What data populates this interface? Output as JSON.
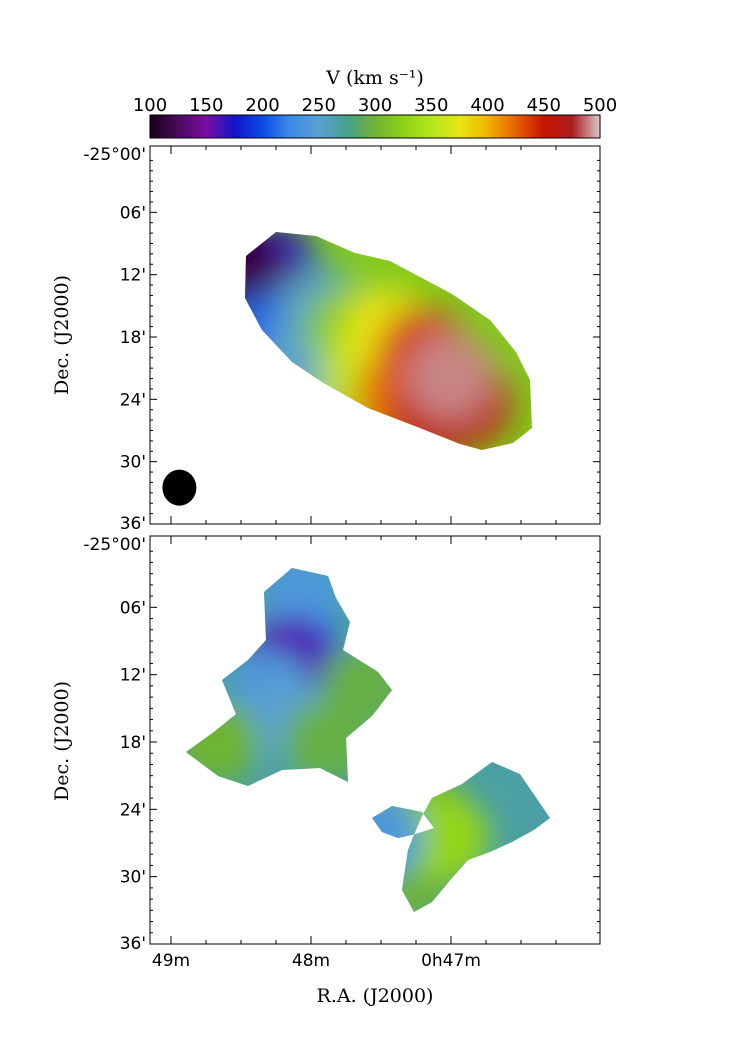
{
  "chart_data": {
    "type": "heatmap",
    "colorbar": {
      "label": "V (km s⁻¹)",
      "range": [
        100,
        500
      ],
      "ticks": [
        100,
        150,
        200,
        250,
        300,
        350,
        400,
        450,
        500
      ],
      "tick_labels": [
        "100",
        "150",
        "200",
        "250",
        "300",
        "350",
        "400",
        "450",
        "500"
      ],
      "colormap": [
        "#1a001a",
        "#4a0a5a",
        "#7a10a0",
        "#1414c8",
        "#0a4ae6",
        "#3c8ce6",
        "#5aa0d2",
        "#46a08c",
        "#6eb432",
        "#8cd214",
        "#b4e61e",
        "#e6e614",
        "#f0b400",
        "#e66400",
        "#c81400",
        "#aa1e1e",
        "#dcc8c8"
      ]
    },
    "x_axis": {
      "label": "R.A. (J2000)",
      "ticks": [
        {
          "ra_min": 49,
          "label": "49m"
        },
        {
          "ra_min": 48,
          "label": "48m"
        },
        {
          "ra_min": 47,
          "label": "0h47m"
        }
      ]
    },
    "panels": [
      {
        "name": "top",
        "ylabel": "Dec. (J2000)",
        "ylim_arcmin": [
          -36,
          0
        ],
        "yticks": [
          {
            "dec_arcmin": 0,
            "label": "-25°00'"
          },
          {
            "dec_arcmin": -6,
            "label": "06'"
          },
          {
            "dec_arcmin": -12,
            "label": "12'"
          },
          {
            "dec_arcmin": -18,
            "label": "18'"
          },
          {
            "dec_arcmin": -24,
            "label": "24'"
          },
          {
            "dec_arcmin": -30,
            "label": "30'"
          },
          {
            "dec_arcmin": -36,
            "label": "36'"
          }
        ],
        "beam": {
          "ra_min": 48.94,
          "dec_arcmin": -32.5
        },
        "blobs": [
          {
            "ra_min": 48.26,
            "dec_arcmin": -11.5,
            "velocity": 175
          },
          {
            "ra_min": 48.4,
            "dec_arcmin": -13.0,
            "velocity": 130
          },
          {
            "ra_min": 48.56,
            "dec_arcmin": -10.7,
            "velocity": 115
          },
          {
            "ra_min": 48.27,
            "dec_arcmin": -17.8,
            "velocity": 210
          },
          {
            "ra_min": 48.05,
            "dec_arcmin": -20.2,
            "velocity": 250
          },
          {
            "ra_min": 47.93,
            "dec_arcmin": -15.5,
            "velocity": 255
          },
          {
            "ra_min": 47.72,
            "dec_arcmin": -17.3,
            "velocity": 320
          },
          {
            "ra_min": 47.62,
            "dec_arcmin": -22.0,
            "velocity": 355
          },
          {
            "ra_min": 47.45,
            "dec_arcmin": -17.6,
            "velocity": 375
          },
          {
            "ra_min": 47.37,
            "dec_arcmin": -23.8,
            "velocity": 420
          },
          {
            "ra_min": 47.2,
            "dec_arcmin": -19.5,
            "velocity": 440
          },
          {
            "ra_min": 47.13,
            "dec_arcmin": -25.5,
            "velocity": 455
          },
          {
            "ra_min": 46.89,
            "dec_arcmin": -24.3,
            "velocity": 460
          },
          {
            "ra_min": 47.01,
            "dec_arcmin": -21.8,
            "velocity": 490
          }
        ]
      },
      {
        "name": "bottom",
        "ylabel": "Dec. (J2000)",
        "ylim_arcmin": [
          -36,
          0
        ],
        "yticks": [
          {
            "dec_arcmin": 0,
            "label": "-25°00'"
          },
          {
            "dec_arcmin": -6,
            "label": "06'"
          },
          {
            "dec_arcmin": -12,
            "label": "12'"
          },
          {
            "dec_arcmin": -18,
            "label": "18'"
          },
          {
            "dec_arcmin": -24,
            "label": "24'"
          },
          {
            "dec_arcmin": -30,
            "label": "30'"
          },
          {
            "dec_arcmin": -36,
            "label": "36'"
          }
        ],
        "blobs": [
          {
            "ra_min": 48.07,
            "dec_arcmin": -5.0,
            "velocity": 240
          },
          {
            "ra_min": 48.08,
            "dec_arcmin": -10.5,
            "velocity": 205
          },
          {
            "ra_min": 48.17,
            "dec_arcmin": -10.6,
            "velocity": 160
          },
          {
            "ra_min": 48.3,
            "dec_arcmin": -13.5,
            "velocity": 240
          },
          {
            "ra_min": 48.15,
            "dec_arcmin": -16.0,
            "velocity": 250
          },
          {
            "ra_min": 48.67,
            "dec_arcmin": -18.0,
            "velocity": 300
          },
          {
            "ra_min": 47.9,
            "dec_arcmin": -18.0,
            "velocity": 295
          },
          {
            "ra_min": 47.63,
            "dec_arcmin": -13.0,
            "velocity": 295
          },
          {
            "ra_min": 47.2,
            "dec_arcmin": -24.0,
            "velocity": 305
          },
          {
            "ra_min": 47.33,
            "dec_arcmin": -27.5,
            "velocity": 310
          },
          {
            "ra_min": 47.3,
            "dec_arcmin": -30.0,
            "velocity": 300
          },
          {
            "ra_min": 47.03,
            "dec_arcmin": -26.5,
            "velocity": 330
          },
          {
            "ra_min": 47.5,
            "dec_arcmin": -26.5,
            "velocity": 240
          }
        ]
      }
    ]
  }
}
